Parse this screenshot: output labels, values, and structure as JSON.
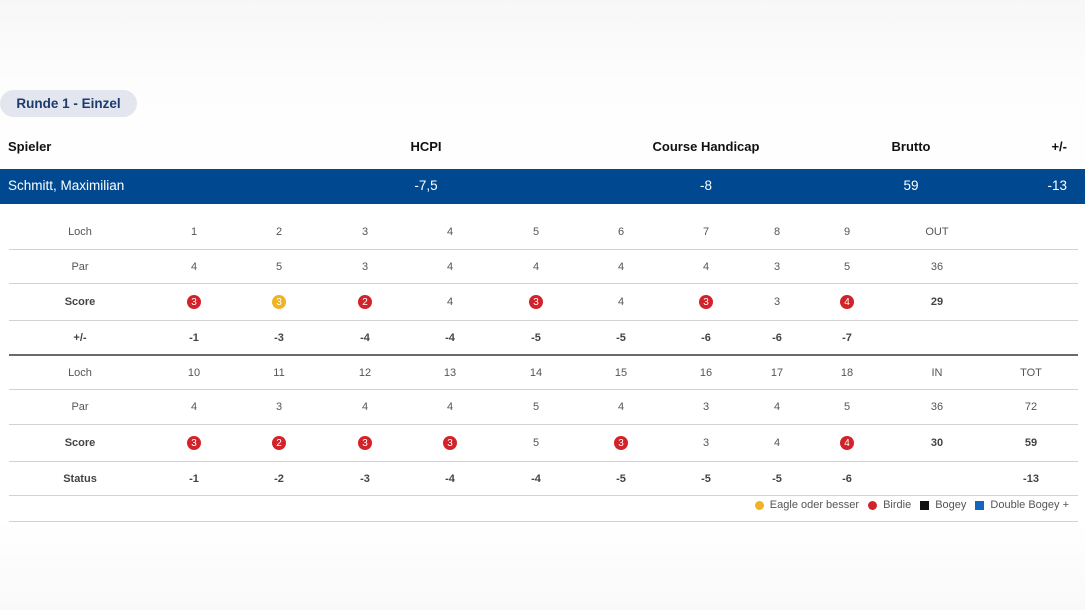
{
  "round_label": "Runde 1 - Einzel",
  "header": {
    "player": "Spieler",
    "hcpi": "HCPI",
    "course_handicap": "Course Handicap",
    "brutto": "Brutto",
    "plusminus": "+/-"
  },
  "player": {
    "name": "Schmitt, Maximilian",
    "hcpi": "-7,5",
    "course_handicap": "-8",
    "brutto": "59",
    "plusminus": "-13"
  },
  "front": {
    "loch_label": "Loch",
    "par_label": "Par",
    "score_label": "Score",
    "pm_label": "+/-",
    "holes": [
      "1",
      "2",
      "3",
      "4",
      "5",
      "6",
      "7",
      "8",
      "9"
    ],
    "total_label": "OUT",
    "par": [
      "4",
      "5",
      "3",
      "4",
      "4",
      "4",
      "4",
      "3",
      "5"
    ],
    "par_total": "36",
    "score": [
      "3",
      "3",
      "2",
      "4",
      "3",
      "4",
      "3",
      "3",
      "4"
    ],
    "score_type": [
      "birdie",
      "eagle",
      "birdie",
      "par",
      "birdie",
      "par",
      "birdie",
      "par",
      "birdie"
    ],
    "score_total": "29",
    "plusminus": [
      "-1",
      "-3",
      "-4",
      "-4",
      "-5",
      "-5",
      "-6",
      "-6",
      "-7"
    ]
  },
  "back": {
    "loch_label": "Loch",
    "par_label": "Par",
    "score_label": "Score",
    "status_label": "Status",
    "holes": [
      "10",
      "11",
      "12",
      "13",
      "14",
      "15",
      "16",
      "17",
      "18"
    ],
    "in_label": "IN",
    "tot_label": "TOT",
    "par": [
      "4",
      "3",
      "4",
      "4",
      "5",
      "4",
      "3",
      "4",
      "5"
    ],
    "par_in": "36",
    "par_tot": "72",
    "score": [
      "3",
      "2",
      "3",
      "3",
      "5",
      "3",
      "3",
      "4",
      "4"
    ],
    "score_type": [
      "birdie",
      "birdie",
      "birdie",
      "birdie",
      "par",
      "birdie",
      "par",
      "par",
      "birdie"
    ],
    "score_in": "30",
    "score_tot": "59",
    "status": [
      "-1",
      "-2",
      "-3",
      "-4",
      "-4",
      "-5",
      "-5",
      "-5",
      "-6"
    ],
    "status_tot": "-13"
  },
  "legend": [
    {
      "label": "Eagle oder besser",
      "color": "#f0b323",
      "shape": "circle"
    },
    {
      "label": "Birdie",
      "color": "#d2232a",
      "shape": "circle"
    },
    {
      "label": "Bogey",
      "color": "#111111",
      "shape": "square"
    },
    {
      "label": "Double Bogey +",
      "color": "#1565c0",
      "shape": "square"
    }
  ]
}
